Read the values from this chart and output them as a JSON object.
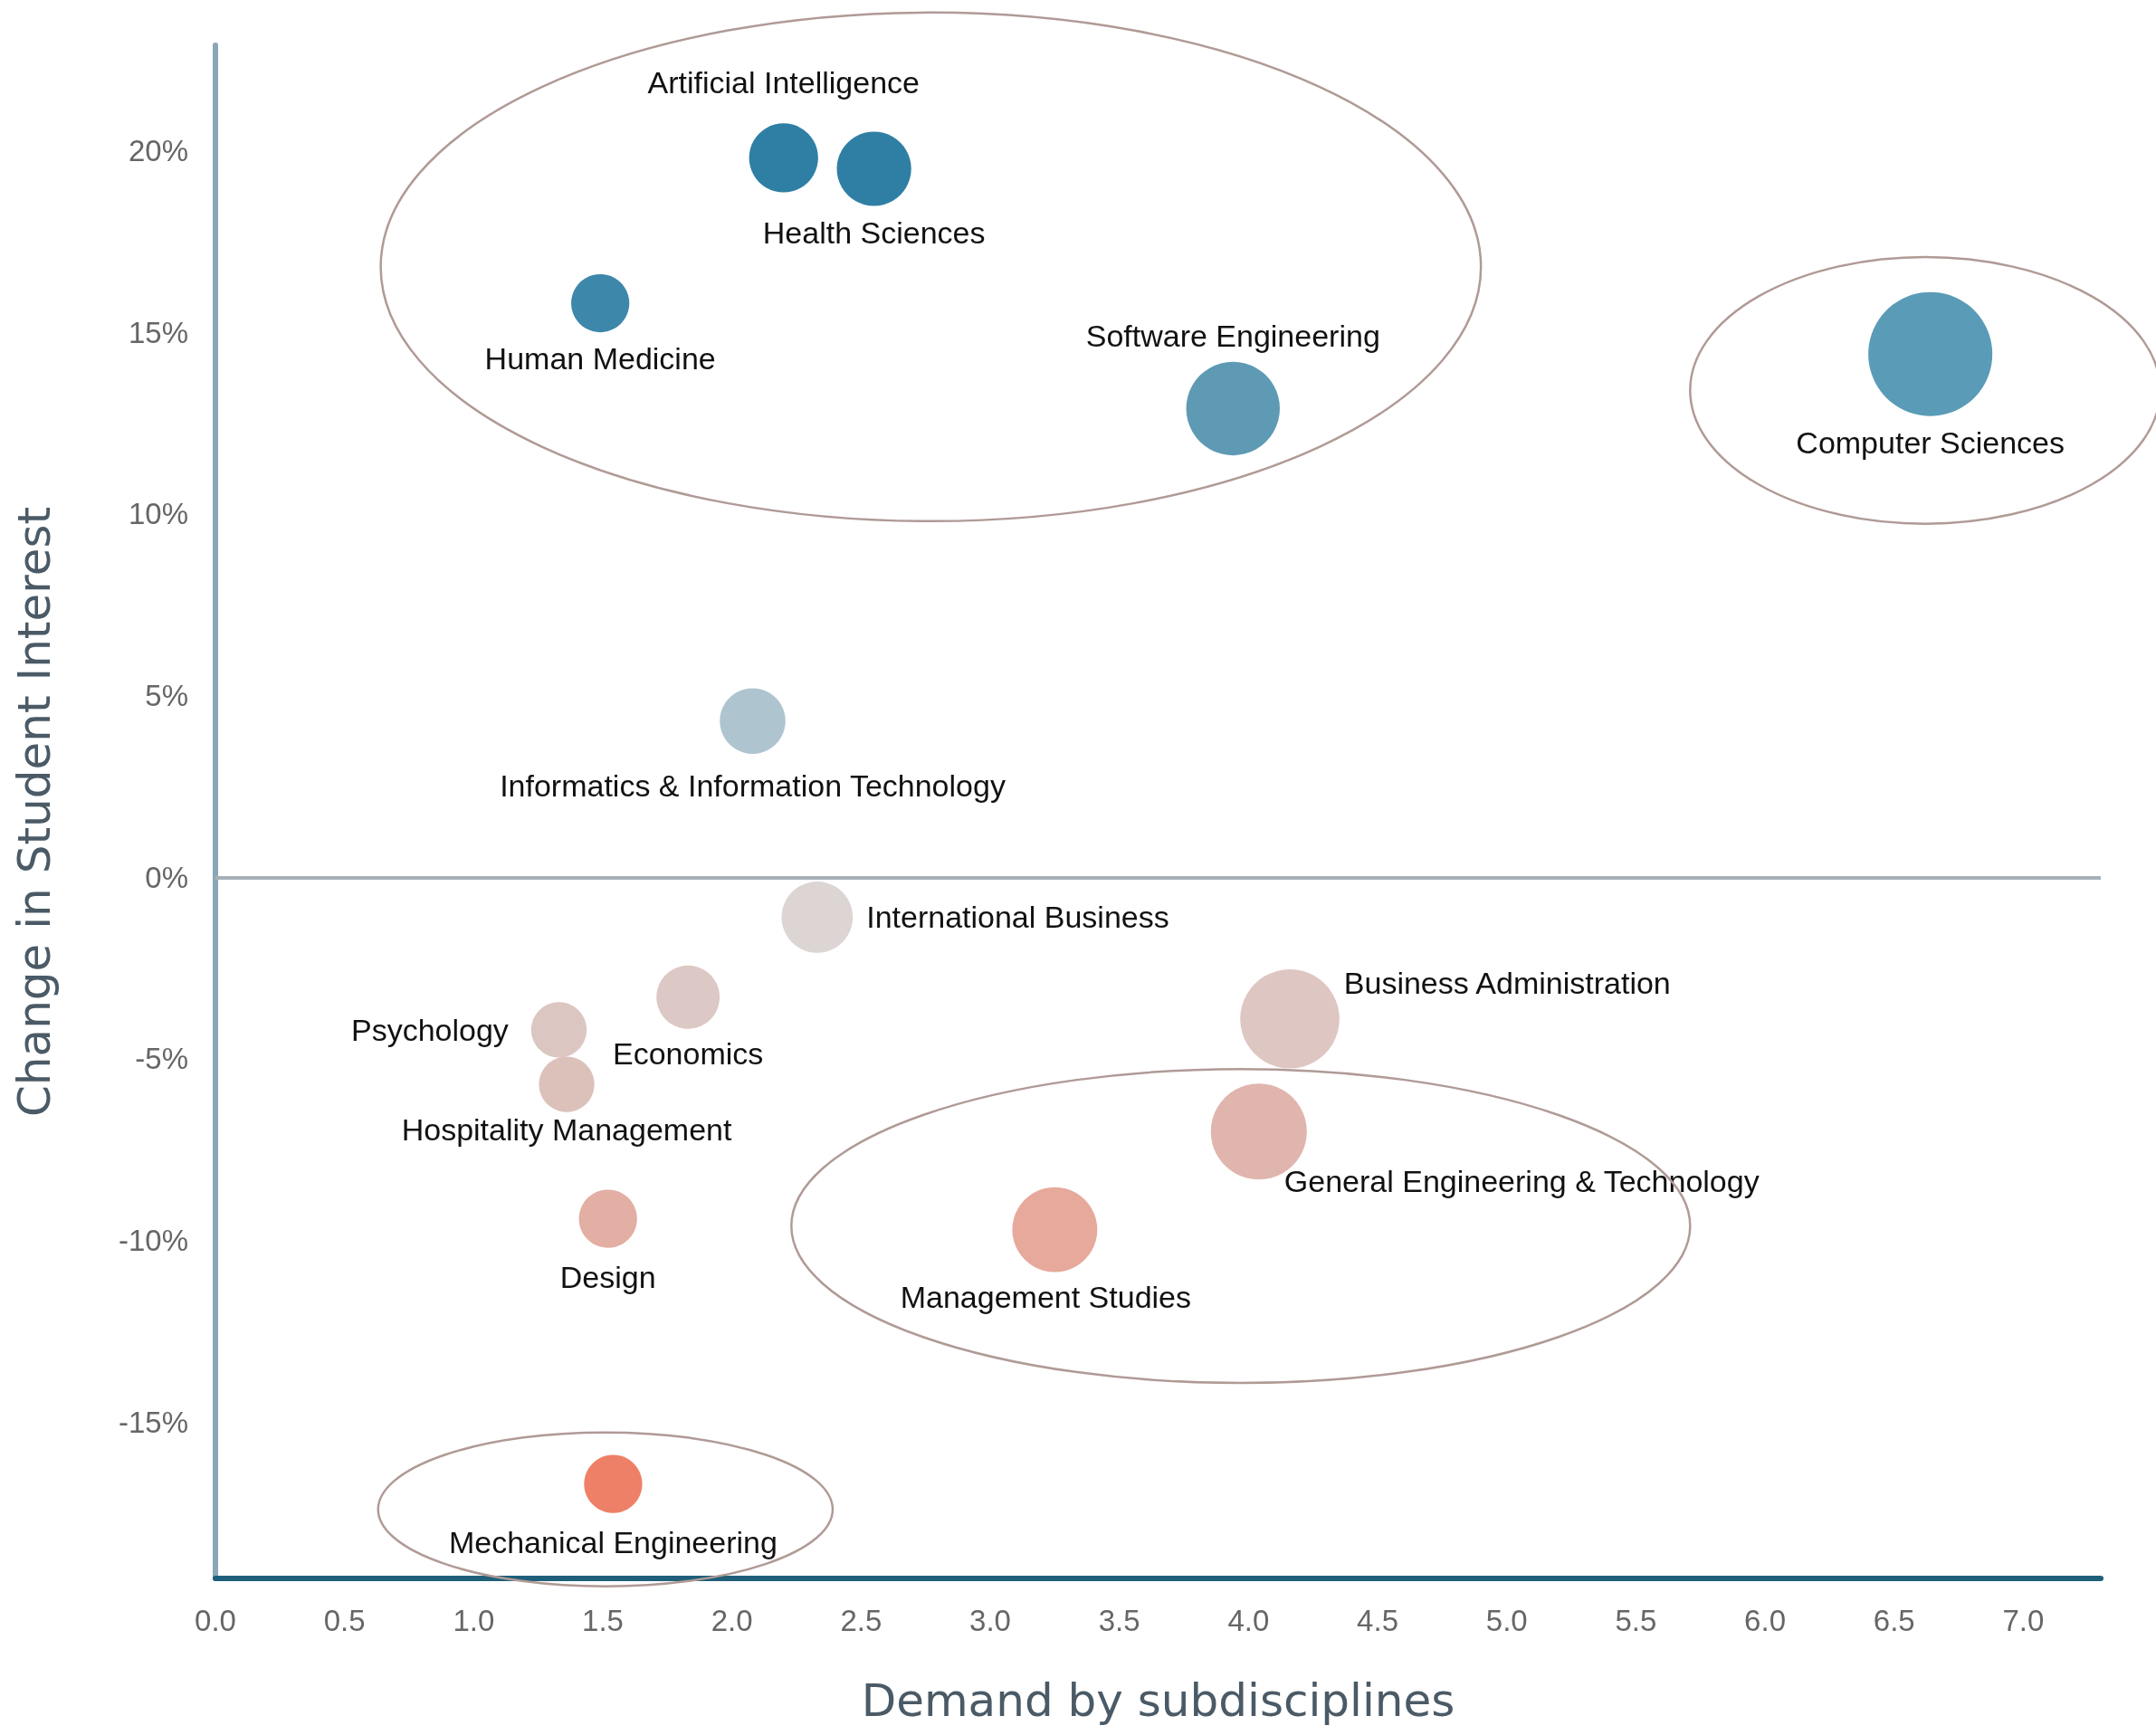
{
  "chart_data": {
    "type": "bubble",
    "xlabel": "Demand by subdisciplines",
    "ylabel": "Change in Student Interest",
    "xlim": [
      0,
      7.3
    ],
    "xticks": [
      {
        "value": 0,
        "label": "0.0"
      },
      0.5,
      {
        "value": 1,
        "label": "1.0"
      },
      1.5,
      {
        "value": 2,
        "label": "2.0"
      },
      2.5,
      {
        "value": 3,
        "label": "3.0"
      },
      3.5,
      {
        "value": 4,
        "label": "4.0"
      },
      4.5,
      {
        "value": 5,
        "label": "5.0"
      },
      5.5,
      {
        "value": 6,
        "label": "6.0"
      },
      6.5,
      {
        "value": 7,
        "label": "7.0"
      }
    ],
    "ylim": [
      -19.3,
      22.9
    ],
    "yticks": [
      {
        "value": -15,
        "label": "-15%"
      },
      {
        "value": -10,
        "label": "-10%"
      },
      {
        "value": -5,
        "label": "-5%"
      },
      {
        "value": 0,
        "label": "0%"
      },
      {
        "value": 5,
        "label": "5%"
      },
      {
        "value": 10,
        "label": "10%"
      },
      {
        "value": 15,
        "label": "15%"
      },
      {
        "value": 20,
        "label": "20%"
      }
    ],
    "grid": false,
    "legend": false,
    "ref_lines": [
      {
        "axis": "y",
        "value": 0,
        "color": "#a7b0b8"
      }
    ],
    "series": [
      {
        "name": "Artificial Intelligence",
        "color": "#2f7fa5",
        "x": [
          2.2
        ],
        "values": [
          19.8
        ],
        "sizes": [
          0.31
        ]
      },
      {
        "name": "Health Sciences",
        "color": "#2f7fa5",
        "x": [
          2.55
        ],
        "values": [
          19.5
        ],
        "sizes": [
          0.36
        ]
      },
      {
        "name": "Human Medicine",
        "color": "#3d87aa",
        "x": [
          1.49
        ],
        "values": [
          15.8
        ],
        "sizes": [
          0.22
        ]
      },
      {
        "name": "Software Engineering",
        "color": "#5e9ab4",
        "x": [
          3.94
        ],
        "values": [
          12.9
        ],
        "sizes": [
          0.57
        ]
      },
      {
        "name": "Computer Sciences",
        "color": "#5a9bb8",
        "x": [
          6.64
        ],
        "values": [
          14.4
        ],
        "sizes": [
          1
        ]
      },
      {
        "name": "Informatics & Information Technology",
        "color": "#aec4cf",
        "x": [
          2.08
        ],
        "values": [
          4.3
        ],
        "sizes": [
          0.28
        ]
      },
      {
        "name": "International Business",
        "color": "#dcd5d3",
        "x": [
          2.33
        ],
        "values": [
          -1.1
        ],
        "sizes": [
          0.33
        ]
      },
      {
        "name": "Economics",
        "color": "#dcc8c4",
        "x": [
          1.83
        ],
        "values": [
          -3.3
        ],
        "sizes": [
          0.26
        ]
      },
      {
        "name": "Psychology",
        "color": "#dcc6c1",
        "x": [
          1.33
        ],
        "values": [
          -4.2
        ],
        "sizes": [
          0.2
        ]
      },
      {
        "name": "Hospitality Management",
        "color": "#dcc1bb",
        "x": [
          1.36
        ],
        "values": [
          -5.7
        ],
        "sizes": [
          0.2
        ]
      },
      {
        "name": "Business Administration",
        "color": "#dec6c3",
        "x": [
          4.16
        ],
        "values": [
          -3.9
        ],
        "sizes": [
          0.64
        ]
      },
      {
        "name": "General Engineering & Technology",
        "color": "#e0b5ae",
        "x": [
          4.04
        ],
        "values": [
          -7.0
        ],
        "sizes": [
          0.6
        ]
      },
      {
        "name": "Management Studies",
        "color": "#e6a99b",
        "x": [
          3.25
        ],
        "values": [
          -9.7
        ],
        "sizes": [
          0.47
        ]
      },
      {
        "name": "Design",
        "color": "#e3aea3",
        "x": [
          1.52
        ],
        "values": [
          -9.4
        ],
        "sizes": [
          0.22
        ]
      },
      {
        "name": "Mechanical Engineering",
        "color": "#ee8068",
        "x": [
          1.54
        ],
        "values": [
          -16.7
        ],
        "sizes": [
          0.22
        ]
      }
    ]
  }
}
